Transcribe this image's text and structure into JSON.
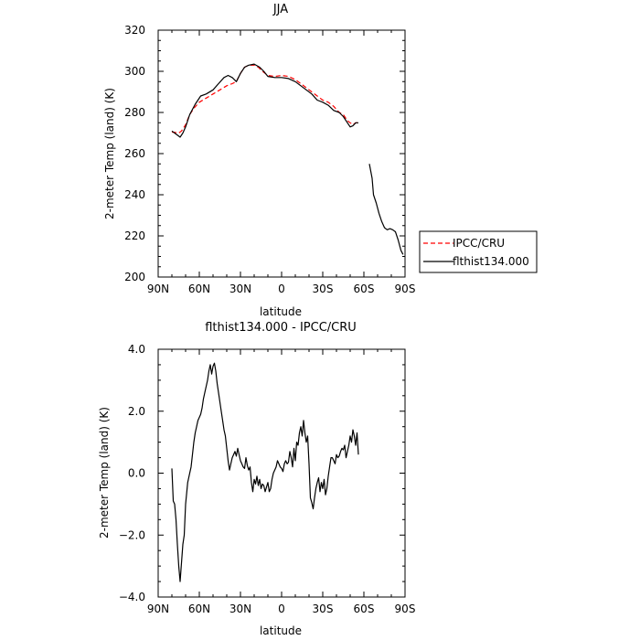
{
  "chart_data": [
    {
      "type": "line",
      "title": "JJA",
      "xlabel": "latitude",
      "ylabel": "2-meter Temp (land) (K)",
      "xlim": [
        90,
        -90
      ],
      "ylim": [
        200,
        320
      ],
      "x_ticks": [
        90,
        60,
        30,
        0,
        -30,
        -60,
        -90
      ],
      "x_tick_labels": [
        "90N",
        "60N",
        "30N",
        "0",
        "30S",
        "60S",
        "90S"
      ],
      "y_ticks": [
        200,
        220,
        240,
        260,
        280,
        300,
        320
      ],
      "y_tick_labels": [
        "200",
        "220",
        "240",
        "260",
        "280",
        "300",
        "320"
      ],
      "grid": false,
      "legend_position": "outside-right",
      "series": [
        {
          "name": "IPCC/CRU",
          "color": "#ff0000",
          "style": "dashed",
          "x": [
            80,
            75,
            73,
            70,
            67,
            64,
            60,
            55,
            50,
            45,
            40,
            36,
            33,
            30,
            27,
            24,
            20,
            17,
            14,
            10,
            5,
            0,
            -5,
            -10,
            -14,
            -18,
            -22,
            -26,
            -30,
            -34,
            -38,
            -42,
            -45,
            -48,
            -50,
            -52,
            -54,
            -56
          ],
          "y": [
            270.5,
            270,
            271,
            274,
            279,
            282,
            285,
            287,
            289,
            291,
            293,
            294,
            295,
            299,
            302,
            303,
            303,
            302,
            300,
            298,
            297.5,
            298,
            297.5,
            296,
            294,
            292,
            290,
            288,
            286,
            285,
            283,
            280,
            279,
            276,
            275,
            274,
            275,
            275
          ]
        },
        {
          "name": "flthist134.000",
          "color": "#000000",
          "style": "solid",
          "x": [
            80,
            77,
            74,
            72,
            70,
            67,
            63,
            59,
            55,
            50,
            46,
            42,
            39,
            36,
            33,
            30,
            27,
            24,
            20,
            16,
            13,
            10,
            5,
            0,
            -5,
            -10,
            -14,
            -18,
            -22,
            -26,
            -30,
            -34,
            -38,
            -42,
            -45,
            -48,
            -50,
            -52,
            -54,
            -56
          ],
          "y": [
            271,
            269.5,
            268,
            270,
            273,
            279,
            284,
            288,
            289,
            291,
            294,
            297,
            298,
            297,
            295,
            299,
            302,
            303,
            303.5,
            302,
            300,
            297.5,
            297,
            297,
            296.5,
            295,
            293,
            291,
            289,
            286,
            285,
            283.5,
            281,
            280,
            278,
            275,
            273,
            273.5,
            275,
            275
          ],
          "x2": [
            -64,
            -66,
            -67,
            -69,
            -71,
            -73,
            -75,
            -77,
            -79,
            -81,
            -83,
            -85,
            -87,
            -88.5
          ],
          "y2": [
            255,
            248,
            240,
            236,
            231,
            227,
            224,
            223,
            223.5,
            223,
            222,
            218,
            213,
            211
          ]
        }
      ]
    },
    {
      "type": "line",
      "title": "flthist134.000 - IPCC/CRU",
      "xlabel": "latitude",
      "ylabel": "2-meter Temp (land) (K)",
      "xlim": [
        90,
        -90
      ],
      "ylim": [
        -4,
        4
      ],
      "x_ticks": [
        90,
        60,
        30,
        0,
        -30,
        -60,
        -90
      ],
      "x_tick_labels": [
        "90N",
        "60N",
        "30N",
        "0",
        "30S",
        "60S",
        "90S"
      ],
      "y_ticks": [
        -4,
        -2,
        0,
        2,
        4
      ],
      "y_tick_labels": [
        "−4.0",
        "−2.0",
        "0.0",
        "2.0",
        "4.0"
      ],
      "grid": false,
      "series": [
        {
          "color": "#000000",
          "style": "solid",
          "x": [
            80,
            79,
            78,
            77,
            76,
            75,
            74,
            73,
            72,
            71,
            70,
            68.5,
            67,
            66,
            65,
            64,
            63,
            62,
            61,
            60,
            59,
            58,
            57,
            56,
            55,
            54,
            53,
            52,
            51,
            50,
            49,
            48,
            47,
            46,
            45,
            44,
            43,
            42,
            41,
            40,
            39,
            38,
            37,
            36,
            35,
            34,
            33,
            32,
            31,
            30,
            29,
            28,
            27,
            26,
            25,
            24,
            23,
            22,
            21,
            20,
            19,
            18,
            17,
            16,
            15,
            14,
            13,
            12,
            11,
            10,
            9,
            8,
            7,
            6,
            5,
            4,
            3,
            2,
            1,
            0,
            -1,
            -2,
            -3,
            -4,
            -5,
            -6,
            -7,
            -8,
            -9,
            -10,
            -11,
            -12,
            -13,
            -14,
            -15,
            -16,
            -17,
            -18,
            -19,
            -20,
            -21,
            -22,
            -23,
            -24,
            -25,
            -26,
            -27,
            -28,
            -29,
            -30,
            -31,
            -32,
            -33,
            -34,
            -35,
            -36,
            -37,
            -38,
            -39,
            -40,
            -41,
            -42,
            -43,
            -44,
            -45,
            -46,
            -47,
            -48,
            -49,
            -50,
            -51,
            -52,
            -53,
            -54,
            -55,
            -56
          ],
          "y": [
            0.15,
            -0.9,
            -1.0,
            -1.5,
            -2.3,
            -3.0,
            -3.5,
            -2.9,
            -2.3,
            -2.0,
            -1.0,
            -0.3,
            0.0,
            0.2,
            0.6,
            1.0,
            1.3,
            1.5,
            1.7,
            1.8,
            1.9,
            2.1,
            2.4,
            2.6,
            2.8,
            3.0,
            3.3,
            3.5,
            3.2,
            3.45,
            3.55,
            3.3,
            2.9,
            2.6,
            2.3,
            2.0,
            1.7,
            1.4,
            1.2,
            0.8,
            0.4,
            0.1,
            0.3,
            0.5,
            0.6,
            0.7,
            0.55,
            0.8,
            0.6,
            0.4,
            0.3,
            0.2,
            0.15,
            0.5,
            0.25,
            0.1,
            0.2,
            -0.3,
            -0.6,
            -0.2,
            -0.35,
            -0.1,
            -0.4,
            -0.2,
            -0.5,
            -0.35,
            -0.4,
            -0.6,
            -0.45,
            -0.3,
            -0.6,
            -0.5,
            -0.2,
            0.0,
            0.1,
            0.2,
            0.4,
            0.3,
            0.2,
            0.15,
            0.05,
            0.3,
            0.4,
            0.3,
            0.35,
            0.7,
            0.5,
            0.2,
            0.8,
            0.4,
            1.0,
            0.9,
            1.3,
            1.5,
            1.2,
            1.7,
            1.3,
            1.0,
            1.2,
            0.3,
            -0.8,
            -0.95,
            -1.15,
            -0.8,
            -0.5,
            -0.3,
            -0.15,
            -0.6,
            -0.3,
            -0.5,
            -0.2,
            -0.7,
            -0.5,
            -0.1,
            0.2,
            0.5,
            0.5,
            0.4,
            0.3,
            0.6,
            0.5,
            0.55,
            0.7,
            0.8,
            0.75,
            0.9,
            0.5,
            0.7,
            0.9,
            1.2,
            1.0,
            1.4,
            1.2,
            0.9,
            1.3,
            0.6
          ]
        }
      ]
    }
  ]
}
